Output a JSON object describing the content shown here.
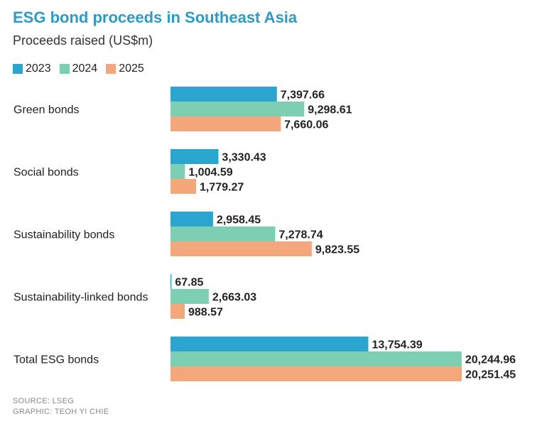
{
  "chart_data": {
    "type": "bar",
    "orientation": "horizontal",
    "title": "ESG bond proceeds in Southeast Asia",
    "subtitle": "Proceeds raised (US$m)",
    "categories": [
      "Green bonds",
      "Social bonds",
      "Sustainability bonds",
      "Sustainability-linked bonds",
      "Total ESG bonds"
    ],
    "series": [
      {
        "name": "2023",
        "color": "#2aa5cf",
        "values": [
          7397.66,
          3330.43,
          2958.45,
          67.85,
          13754.39
        ],
        "labels": [
          "7,397.66",
          "3,330.43",
          "2,958.45",
          "67.85",
          "13,754.39"
        ]
      },
      {
        "name": "2024",
        "color": "#7dcfb3",
        "values": [
          9298.61,
          1004.59,
          7278.74,
          2663.03,
          20244.96
        ],
        "labels": [
          "9,298.61",
          "1,004.59",
          "7,278.74",
          "2,663.03",
          "20,244.96"
        ]
      },
      {
        "name": "2025",
        "color": "#f4a77a",
        "values": [
          7660.06,
          1779.27,
          9823.55,
          988.57,
          20251.45
        ],
        "labels": [
          "7,660.06",
          "1,779.27",
          "9,823.55",
          "988.57",
          "20,251.45"
        ]
      }
    ],
    "xlim": [
      0,
      20251.45
    ],
    "legend_position": "top-left"
  },
  "footer": {
    "source": "SOURCE: LSEG",
    "graphic": "GRAPHIC: TEOH YI CHIE"
  }
}
